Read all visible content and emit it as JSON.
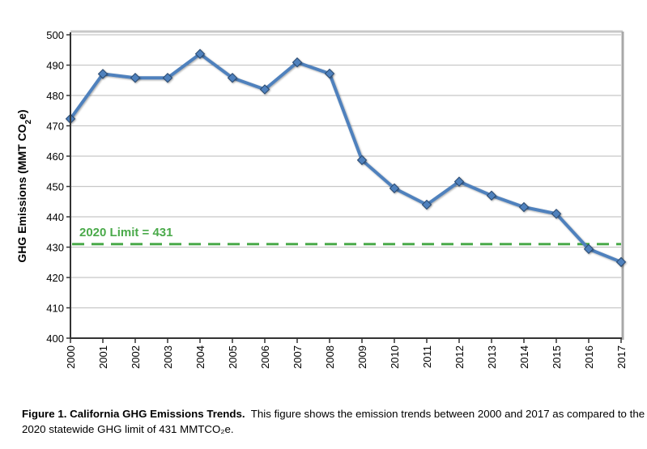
{
  "chart_data": {
    "type": "line",
    "title": "",
    "xlabel": "",
    "ylabel": "GHG Emissions (MMT CO2e)",
    "ylim": [
      400,
      500
    ],
    "yticks": [
      400,
      410,
      420,
      430,
      440,
      450,
      460,
      470,
      480,
      490,
      500
    ],
    "grid": true,
    "x": [
      "2000",
      "2001",
      "2002",
      "2003",
      "2004",
      "2005",
      "2006",
      "2007",
      "2008",
      "2009",
      "2010",
      "2011",
      "2012",
      "2013",
      "2014",
      "2015",
      "2016",
      "2017"
    ],
    "series": [
      {
        "values": [
          472.3,
          487.1,
          485.8,
          485.8,
          493.7,
          485.8,
          482.0,
          490.9,
          487.2,
          458.7,
          449.4,
          444.0,
          451.6,
          447.0,
          443.2,
          441.0,
          429.4,
          425.1
        ],
        "color": "#4f81bd",
        "marker": "diamond"
      }
    ],
    "reference_line": {
      "value": 431,
      "label": "2020 Limit = 431",
      "color": "#4aaa4a",
      "style": "dashed"
    }
  },
  "caption": {
    "bold": "Figure 1. California GHG Emissions Trends.",
    "text": "This figure shows the emission trends between 2000 and 2017 as compared to the 2020 statewide GHG limit of 431 MMTCO₂e."
  }
}
